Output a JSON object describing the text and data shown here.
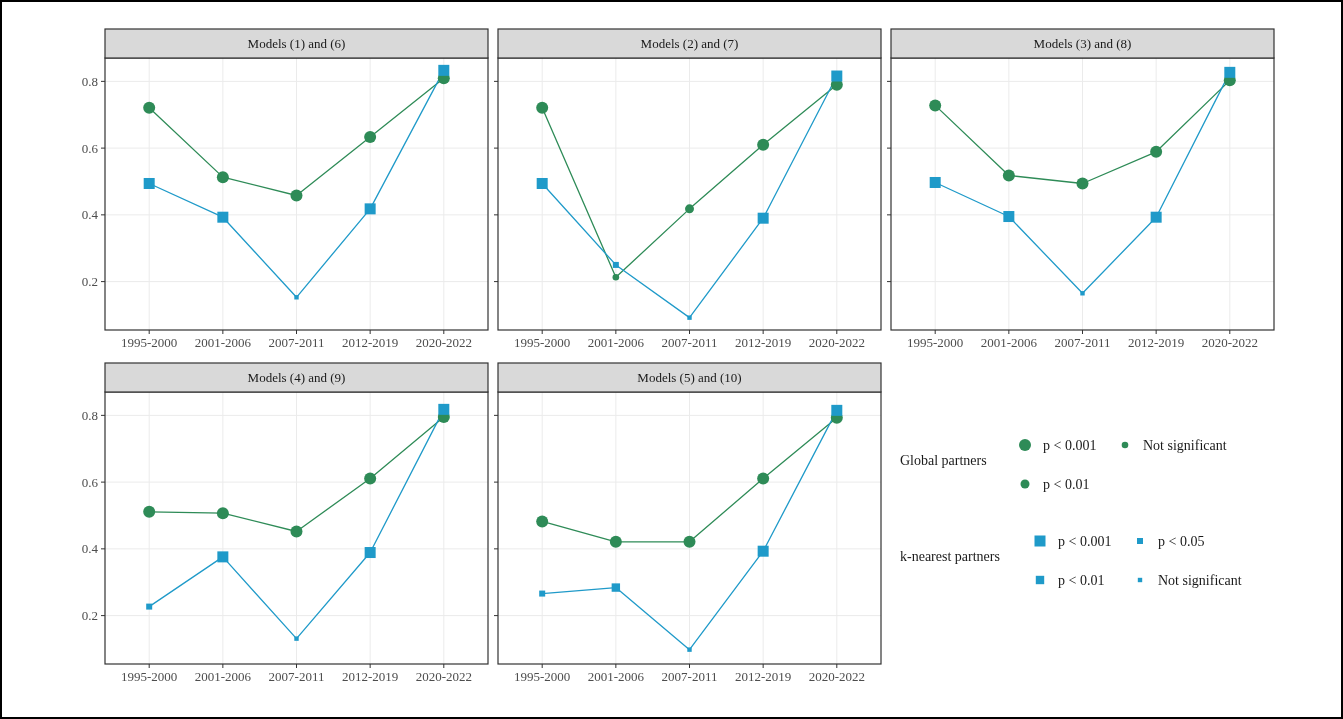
{
  "chart_data": [
    {
      "type": "line",
      "title": "Models (1) and (6)",
      "categories": [
        "1995-2000",
        "2001-2006",
        "2007-2011",
        "2012-2019",
        "2020-2022"
      ],
      "ylim": [
        0.055,
        0.87
      ],
      "yticks": [
        0.2,
        0.4,
        0.6,
        0.8
      ],
      "grid": true,
      "legend": false,
      "tick_labels": true,
      "series": [
        {
          "color": "#2e8b57",
          "values": [
            0.721,
            0.513,
            0.458,
            0.633,
            0.809
          ]
        },
        {
          "color": "#1f9ac9",
          "values": [
            0.494,
            0.393,
            0.153,
            0.418,
            0.833
          ]
        },
        {
          "type": "scatter",
          "color": "#2e8b57",
          "marker": "circle",
          "values": [
            0.721,
            0.513,
            0.458,
            0.633,
            0.809
          ]
        },
        {
          "type": "scatter",
          "marker": "circle",
          "values": [
            null,
            null,
            null,
            null,
            null
          ]
        },
        {
          "type": "scatter",
          "marker": "circle",
          "values": [
            null,
            null,
            null,
            null,
            null
          ]
        },
        {
          "type": "scatter",
          "color": "#1f9ac9",
          "marker": "square",
          "values": [
            0.494,
            0.393,
            null,
            0.418,
            0.833
          ]
        },
        {
          "type": "scatter",
          "marker": "square",
          "values": [
            null,
            null,
            null,
            null,
            null
          ]
        },
        {
          "type": "scatter",
          "marker": "square",
          "values": [
            null,
            null,
            null,
            null,
            null
          ]
        },
        {
          "type": "scatter",
          "color": "#1f9ac9",
          "marker": "square",
          "values": [
            null,
            null,
            0.153,
            null,
            null
          ]
        }
      ]
    },
    {
      "type": "line",
      "title": "Models (2) and (7)",
      "categories": [
        "1995-2000",
        "2001-2006",
        "2007-2011",
        "2012-2019",
        "2020-2022"
      ],
      "ylim": [
        0.055,
        0.87
      ],
      "yticks": [
        0.2,
        0.4,
        0.6,
        0.8
      ],
      "grid": true,
      "legend": false,
      "tick_labels": "x",
      "series": [
        {
          "color": "#2e8b57",
          "values": [
            0.721,
            0.213,
            0.418,
            0.61,
            0.79
          ]
        },
        {
          "color": "#1f9ac9",
          "values": [
            0.494,
            0.25,
            0.092,
            0.39,
            0.816
          ]
        },
        {
          "type": "scatter",
          "color": "#2e8b57",
          "marker": "circle",
          "values": [
            0.721,
            null,
            null,
            0.61,
            0.79
          ]
        },
        {
          "type": "scatter",
          "color": "#2e8b57",
          "marker": "circle",
          "values": [
            null,
            null,
            0.418,
            null,
            null
          ]
        },
        {
          "type": "scatter",
          "color": "#2e8b57",
          "marker": "circle",
          "values": [
            null,
            0.213,
            null,
            null,
            null
          ]
        },
        {
          "type": "scatter",
          "color": "#1f9ac9",
          "marker": "square",
          "values": [
            0.494,
            null,
            null,
            0.39,
            0.816
          ]
        },
        {
          "type": "scatter",
          "marker": "square",
          "values": [
            null,
            null,
            null,
            null,
            null
          ]
        },
        {
          "type": "scatter",
          "color": "#1f9ac9",
          "marker": "square",
          "values": [
            null,
            0.25,
            null,
            null,
            null
          ]
        },
        {
          "type": "scatter",
          "color": "#1f9ac9",
          "marker": "square",
          "values": [
            null,
            null,
            0.092,
            null,
            null
          ]
        }
      ]
    },
    {
      "type": "line",
      "title": "Models (3) and (8)",
      "categories": [
        "1995-2000",
        "2001-2006",
        "2007-2011",
        "2012-2019",
        "2020-2022"
      ],
      "ylim": [
        0.055,
        0.87
      ],
      "yticks": [
        0.2,
        0.4,
        0.6,
        0.8
      ],
      "grid": true,
      "legend": false,
      "tick_labels": "x",
      "series": [
        {
          "color": "#2e8b57",
          "values": [
            0.728,
            0.518,
            0.494,
            0.589,
            0.803
          ]
        },
        {
          "color": "#1f9ac9",
          "values": [
            0.497,
            0.395,
            0.165,
            0.393,
            0.827
          ]
        },
        {
          "type": "scatter",
          "color": "#2e8b57",
          "marker": "circle",
          "values": [
            0.728,
            0.518,
            0.494,
            0.589,
            0.803
          ]
        },
        {
          "type": "scatter",
          "marker": "circle",
          "values": [
            null,
            null,
            null,
            null,
            null
          ]
        },
        {
          "type": "scatter",
          "marker": "circle",
          "values": [
            null,
            null,
            null,
            null,
            null
          ]
        },
        {
          "type": "scatter",
          "color": "#1f9ac9",
          "marker": "square",
          "values": [
            0.497,
            0.395,
            null,
            0.393,
            0.827
          ]
        },
        {
          "type": "scatter",
          "marker": "square",
          "values": [
            null,
            null,
            null,
            null,
            null
          ]
        },
        {
          "type": "scatter",
          "marker": "square",
          "values": [
            null,
            null,
            null,
            null,
            null
          ]
        },
        {
          "type": "scatter",
          "color": "#1f9ac9",
          "marker": "square",
          "values": [
            null,
            null,
            0.165,
            null,
            null
          ]
        }
      ]
    },
    {
      "type": "line",
      "title": "Models (4) and (9)",
      "categories": [
        "1995-2000",
        "2001-2006",
        "2007-2011",
        "2012-2019",
        "2020-2022"
      ],
      "ylim": [
        0.055,
        0.87
      ],
      "yticks": [
        0.2,
        0.4,
        0.6,
        0.8
      ],
      "grid": true,
      "legend": false,
      "tick_labels": true,
      "series": [
        {
          "color": "#2e8b57",
          "values": [
            0.511,
            0.507,
            0.452,
            0.611,
            0.795
          ]
        },
        {
          "color": "#1f9ac9",
          "values": [
            0.227,
            0.376,
            0.131,
            0.389,
            0.818
          ]
        },
        {
          "type": "scatter",
          "color": "#2e8b57",
          "marker": "circle",
          "values": [
            0.511,
            0.507,
            0.452,
            0.611,
            0.795
          ]
        },
        {
          "type": "scatter",
          "marker": "circle",
          "values": [
            null,
            null,
            null,
            null,
            null
          ]
        },
        {
          "type": "scatter",
          "marker": "circle",
          "values": [
            null,
            null,
            null,
            null,
            null
          ]
        },
        {
          "type": "scatter",
          "color": "#1f9ac9",
          "marker": "square",
          "values": [
            null,
            0.376,
            null,
            0.389,
            0.818
          ]
        },
        {
          "type": "scatter",
          "marker": "square",
          "values": [
            null,
            null,
            null,
            null,
            null
          ]
        },
        {
          "type": "scatter",
          "color": "#1f9ac9",
          "marker": "square",
          "values": [
            0.227,
            null,
            null,
            null,
            null
          ]
        },
        {
          "type": "scatter",
          "color": "#1f9ac9",
          "marker": "square",
          "values": [
            null,
            null,
            0.131,
            null,
            null
          ]
        }
      ]
    },
    {
      "type": "line",
      "title": "Models (5) and (10)",
      "categories": [
        "1995-2000",
        "2001-2006",
        "2007-2011",
        "2012-2019",
        "2020-2022"
      ],
      "ylim": [
        0.055,
        0.87
      ],
      "yticks": [
        0.2,
        0.4,
        0.6,
        0.8
      ],
      "grid": true,
      "legend": "right",
      "tick_labels": "x",
      "annotations": [
        "Global partners",
        "k-nearest partners"
      ],
      "series": [
        {
          "color": "#2e8b57",
          "values": [
            0.482,
            0.421,
            0.421,
            0.611,
            0.793
          ]
        },
        {
          "color": "#1f9ac9",
          "values": [
            0.266,
            0.284,
            0.098,
            0.393,
            0.815
          ]
        },
        {
          "type": "scatter",
          "name": "p < 0.001",
          "color": "#2e8b57",
          "marker": "circle",
          "values": [
            0.482,
            0.421,
            0.421,
            0.611,
            0.793
          ]
        },
        {
          "type": "scatter",
          "name": "p < 0.01",
          "color": "#2e8b57",
          "marker": "circle",
          "values": [
            null,
            null,
            null,
            null,
            null
          ]
        },
        {
          "type": "scatter",
          "name": "Not significant",
          "color": "#2e8b57",
          "marker": "circle",
          "values": [
            null,
            null,
            null,
            null,
            null
          ]
        },
        {
          "type": "scatter",
          "name": "p < 0.001",
          "color": "#1f9ac9",
          "marker": "square",
          "values": [
            null,
            null,
            null,
            0.393,
            0.815
          ]
        },
        {
          "type": "scatter",
          "name": "p < 0.01",
          "color": "#1f9ac9",
          "marker": "square",
          "values": [
            null,
            0.284,
            null,
            null,
            null
          ]
        },
        {
          "type": "scatter",
          "name": "p < 0.05",
          "color": "#1f9ac9",
          "marker": "square",
          "values": [
            0.266,
            null,
            null,
            null,
            null
          ]
        },
        {
          "type": "scatter",
          "name": "Not significant",
          "color": "#1f9ac9",
          "marker": "square",
          "values": [
            null,
            null,
            0.098,
            null,
            null
          ]
        }
      ]
    }
  ]
}
